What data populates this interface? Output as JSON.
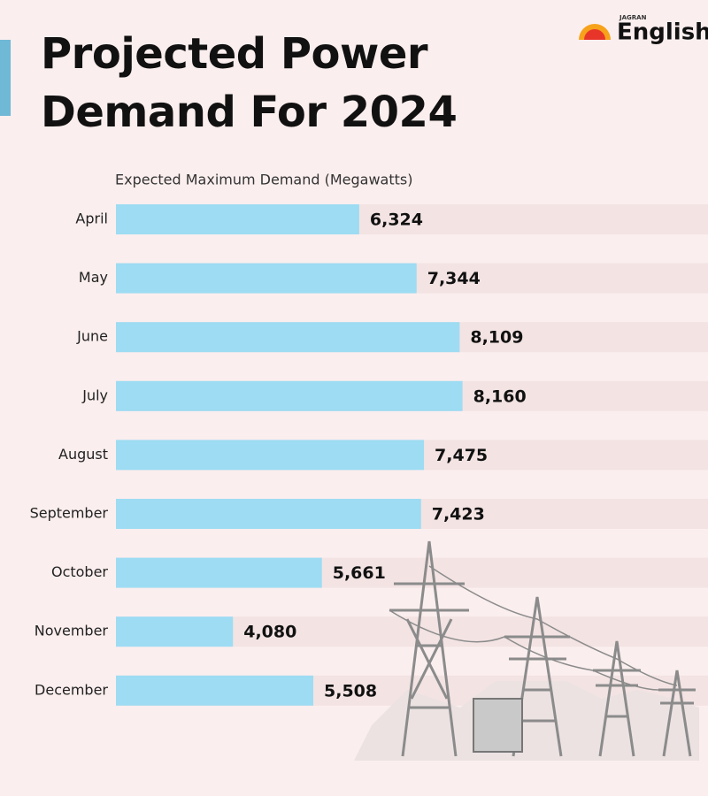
{
  "brand": {
    "small": "JAGRAN",
    "name": "English"
  },
  "chart_data": {
    "type": "bar",
    "orientation": "horizontal",
    "title": "Projected Power Demand For 2024",
    "subtitle": "Expected Maximum Demand (Megawatts)",
    "categories": [
      "April",
      "May",
      "June",
      "July",
      "August",
      "September",
      "October",
      "November",
      "December"
    ],
    "values": [
      6324,
      7344,
      8109,
      8160,
      7475,
      7423,
      5661,
      4080,
      5508
    ],
    "value_labels": [
      "6,324",
      "7,344",
      "8,109",
      "8,160",
      "7,475",
      "7,423",
      "5,661",
      "4,080",
      "5,508"
    ],
    "color": "#9ddcf3",
    "xlim": [
      2000,
      9000
    ]
  }
}
